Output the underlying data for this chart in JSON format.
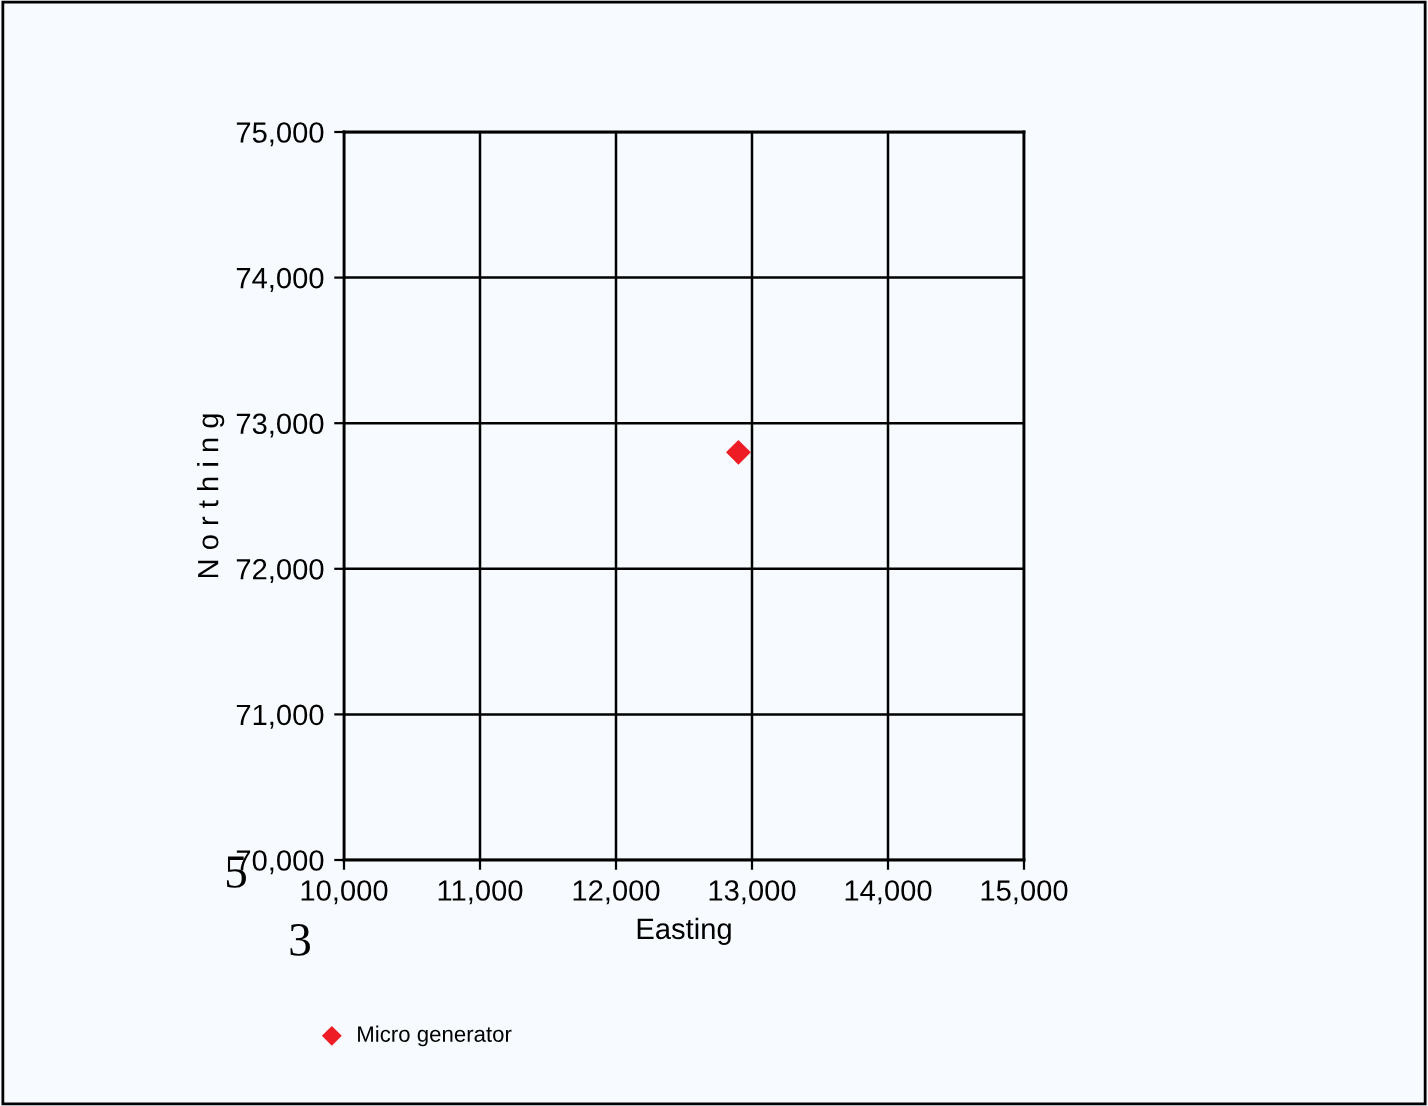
{
  "chart_data": {
    "type": "scatter",
    "xlabel": "Easting",
    "ylabel": "N o r t h i n g",
    "x": [
      12900
    ],
    "series": [
      {
        "name": "Micro generator",
        "color": "#ee1c25",
        "values": [
          72800
        ]
      }
    ],
    "xlim": [
      10000,
      15000
    ],
    "xticks": [
      {
        "value": 10000,
        "label": "10,000"
      },
      {
        "value": 11000,
        "label": "11,000"
      },
      {
        "value": 12000,
        "label": "12,000"
      },
      {
        "value": 13000,
        "label": "13,000"
      },
      {
        "value": 14000,
        "label": "14,000"
      },
      {
        "value": 15000,
        "label": "15,000"
      }
    ],
    "ylim": [
      70000,
      75000
    ],
    "yticks": [
      {
        "value": 70000,
        "label": "70,000"
      },
      {
        "value": 71000,
        "label": "71,000"
      },
      {
        "value": 72000,
        "label": "72,000"
      },
      {
        "value": 73000,
        "label": "73,000"
      },
      {
        "value": 74000,
        "label": "74,000"
      },
      {
        "value": 75000,
        "label": "75,000"
      }
    ],
    "grid": true,
    "legend": "bottom left",
    "marker": "diamond",
    "annotations": [
      "5",
      "3"
    ]
  }
}
